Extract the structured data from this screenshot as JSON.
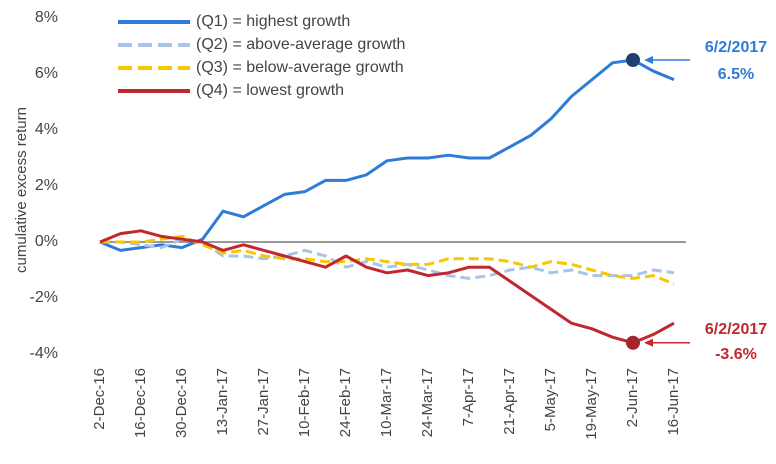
{
  "chart_data": {
    "type": "line",
    "y_label": "cumulative excess return",
    "categories": [
      "2-Dec-16",
      null,
      "16-Dec-16",
      null,
      "30-Dec-16",
      null,
      "13-Jan-17",
      null,
      "27-Jan-17",
      null,
      "10-Feb-17",
      null,
      "24-Feb-17",
      null,
      "10-Mar-17",
      null,
      "24-Mar-17",
      null,
      "7-Apr-17",
      null,
      "21-Apr-17",
      null,
      "5-May-17",
      null,
      "19-May-17",
      null,
      "2-Jun-17",
      null,
      "16-Jun-17"
    ],
    "series": [
      {
        "name": "(Q1) = highest growth",
        "color": "#2f7bd8",
        "dashed": false,
        "values": [
          0,
          -0.3,
          -0.2,
          -0.1,
          -0.2,
          0.1,
          1.1,
          0.9,
          1.3,
          1.7,
          1.8,
          2.2,
          2.2,
          2.4,
          2.9,
          3.0,
          3.0,
          3.1,
          3.0,
          3.0,
          3.4,
          3.8,
          4.4,
          5.2,
          5.8,
          6.4,
          6.5,
          6.1,
          5.8
        ]
      },
      {
        "name": "(Q2) = above-average growth",
        "color": "#a9c4e8",
        "dashed": true,
        "values": [
          0,
          0,
          -0.1,
          -0.2,
          0.1,
          0,
          -0.5,
          -0.5,
          -0.6,
          -0.5,
          -0.3,
          -0.5,
          -0.9,
          -0.7,
          -0.9,
          -0.8,
          -1.0,
          -1.2,
          -1.3,
          -1.2,
          -1.0,
          -0.9,
          -1.1,
          -1.0,
          -1.2,
          -1.2,
          -1.2,
          -1.0,
          -1.1
        ]
      },
      {
        "name": "(Q3) = below-average growth",
        "color": "#f5c800",
        "dashed": true,
        "values": [
          0,
          0,
          0,
          0.1,
          0.2,
          -0.1,
          -0.4,
          -0.3,
          -0.5,
          -0.6,
          -0.6,
          -0.7,
          -0.7,
          -0.6,
          -0.7,
          -0.8,
          -0.8,
          -0.6,
          -0.6,
          -0.6,
          -0.7,
          -0.9,
          -0.7,
          -0.8,
          -1.0,
          -1.2,
          -1.3,
          -1.2,
          -1.5
        ]
      },
      {
        "name": "(Q4) = lowest growth",
        "color": "#c0282d",
        "dashed": false,
        "values": [
          0,
          0.3,
          0.4,
          0.2,
          0.1,
          0,
          -0.3,
          -0.1,
          -0.3,
          -0.5,
          -0.7,
          -0.9,
          -0.5,
          -0.9,
          -1.1,
          -1.0,
          -1.2,
          -1.1,
          -0.9,
          -0.9,
          -1.4,
          -1.9,
          -2.4,
          -2.9,
          -3.1,
          -3.4,
          -3.6,
          -3.3,
          -2.9
        ]
      }
    ],
    "ylim": [
      -4,
      8
    ],
    "yticks": [
      {
        "value": -4,
        "label": "-4%"
      },
      {
        "value": -2,
        "label": "-2%"
      },
      {
        "value": 0,
        "label": "0%"
      },
      {
        "value": 2,
        "label": "2%"
      },
      {
        "value": 4,
        "label": "4%"
      },
      {
        "value": 6,
        "label": "6%"
      },
      {
        "value": 8,
        "label": "8%"
      }
    ],
    "legend": "upper left",
    "annotations": [
      {
        "date": "6/2/2017",
        "value_label": "6.5%",
        "color": "#2f7bd8",
        "marker_color": "#1f3f73"
      },
      {
        "date": "6/2/2017",
        "value_label": "-3.6%",
        "color": "#c0282d",
        "marker_color": "#a3262a"
      }
    ]
  }
}
